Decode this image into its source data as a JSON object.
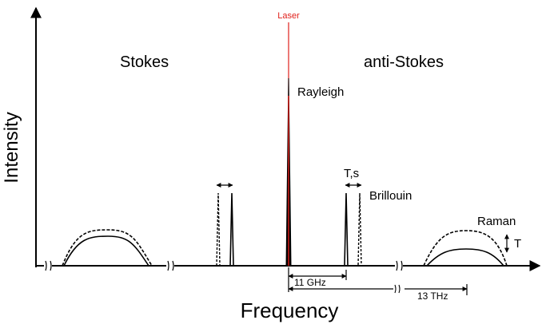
{
  "axes": {
    "y_label": "Intensity",
    "x_label": "Frequency"
  },
  "regions": {
    "stokes": "Stokes",
    "anti_stokes": "anti-Stokes"
  },
  "peaks": {
    "laser": "Laser",
    "rayleigh": "Rayleigh",
    "brillouin": "Brillouin",
    "raman": "Raman"
  },
  "annotations": {
    "brillouin_shift": "T,s",
    "raman_change": "T",
    "brillouin_spacing": "11 GHz",
    "raman_spacing": "13 THz"
  },
  "colors": {
    "laser": "#e0201b",
    "lines": "#000000"
  }
}
